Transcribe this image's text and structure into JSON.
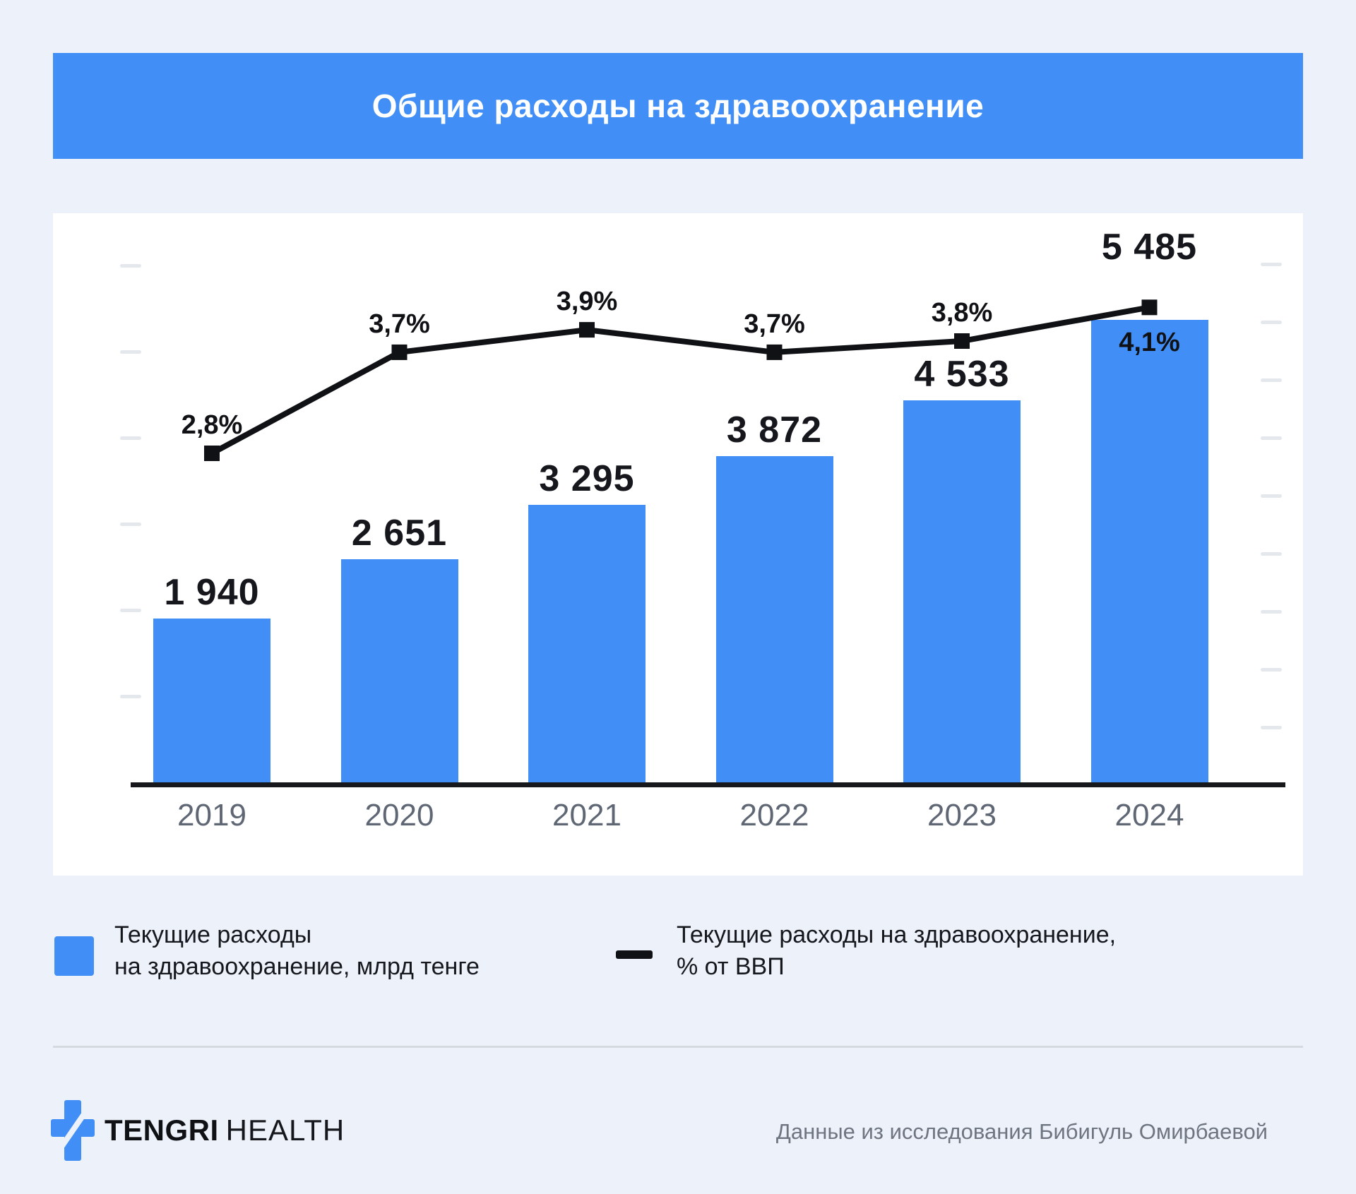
{
  "header": {
    "title": "Общие расходы на здравоохранение"
  },
  "colors": {
    "accent_blue": "#418FF6",
    "line_black": "#0F1115",
    "page_background": "#ECF1FA",
    "card_background": "#FFFFFF",
    "year_label_gray": "#5F6774",
    "source_gray": "#6E7580"
  },
  "chart_data": {
    "type": "bar+line combo",
    "title": "Общие расходы на здравоохранение",
    "categories": [
      "2019",
      "2020",
      "2021",
      "2022",
      "2023",
      "2024"
    ],
    "series": [
      {
        "name": "Текущие расходы на здравоохранение, млрд тенге",
        "type": "bar",
        "color": "#418FF6",
        "values": [
          1940,
          2651,
          3295,
          3872,
          4533,
          5485
        ],
        "labels": [
          "1 940",
          "2 651",
          "3 295",
          "3 872",
          "4 533",
          "5 485"
        ],
        "value_label_clear_line": [
          false,
          false,
          false,
          false,
          false,
          true
        ]
      },
      {
        "name": "Текущие расходы на здравоохранение, % от ВВП",
        "type": "line",
        "color": "#0F1115",
        "values": [
          2.8,
          3.7,
          3.9,
          3.7,
          3.8,
          4.1
        ],
        "labels": [
          "2,8%",
          "3,7%",
          "3,9%",
          "3,7%",
          "3,8%",
          "4,1%"
        ],
        "label_below": [
          false,
          false,
          false,
          false,
          false,
          true
        ]
      }
    ],
    "xlabel": "",
    "ylabel_left": "млрд тенге",
    "ylabel_right": "% от ВВП",
    "ylim_left": [
      0,
      6200
    ],
    "ylim_right": [
      0,
      4.6
    ],
    "axis_tick_labels_shown": false,
    "grid": "off",
    "legend_position": "bottom"
  },
  "legend": {
    "items": [
      {
        "swatch": "square",
        "color": "#418FF6",
        "label_line1": "Текущие расходы",
        "label_line2": "на здравоохранение, млрд тенге"
      },
      {
        "swatch": "dash",
        "color": "#0F1115",
        "label_line1": "Текущие расходы на здравоохранение,",
        "label_line2": "% от ВВП"
      }
    ]
  },
  "footer": {
    "brand_primary": "TENGRI",
    "brand_secondary": "HEALTH",
    "source": "Данные из исследования Бибигуль Омирбаевой"
  }
}
